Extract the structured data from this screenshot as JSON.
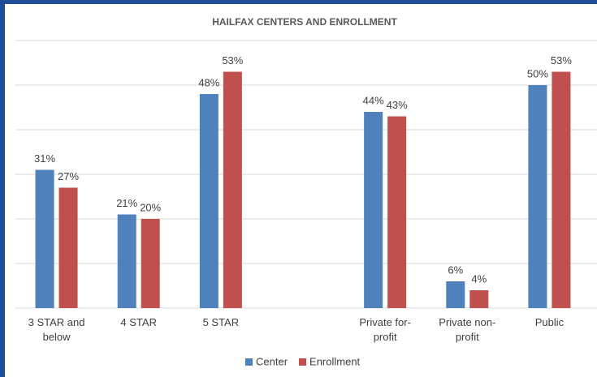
{
  "chart_data": {
    "type": "bar",
    "title": "HAILFAX CENTERS AND ENROLLMENT",
    "categories": [
      "3 STAR and below",
      "4 STAR",
      "5 STAR",
      null,
      "Private for-profit",
      "Private non-profit",
      "Public"
    ],
    "series": [
      {
        "name": "Center",
        "color": "#4f81bd",
        "values": [
          31,
          21,
          48,
          null,
          44,
          6,
          50
        ],
        "value_labels": [
          "31%",
          "21%",
          "48%",
          null,
          "44%",
          "6%",
          "50%"
        ]
      },
      {
        "name": "Enrollment",
        "color": "#c0504d",
        "values": [
          27,
          20,
          53,
          null,
          43,
          4,
          53
        ],
        "value_labels": [
          "27%",
          "20%",
          "53%",
          null,
          "43%",
          "4%",
          "53%"
        ]
      }
    ],
    "ylim": [
      0,
      60
    ],
    "yticks": [
      0,
      10,
      20,
      30,
      40,
      50,
      60
    ],
    "grid": true
  }
}
